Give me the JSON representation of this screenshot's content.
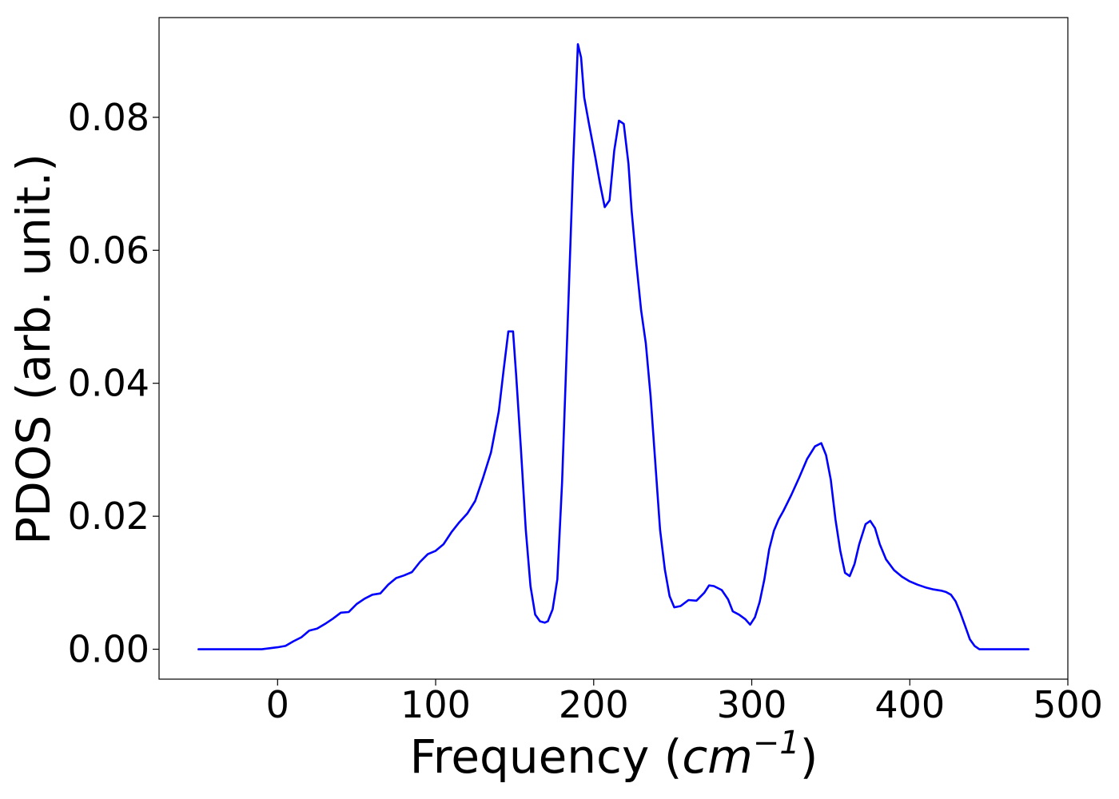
{
  "chart_data": {
    "type": "line",
    "title": "",
    "xlabel": "Frequency",
    "xlabel_unit_base": "cm",
    "xlabel_unit_exp": "−1",
    "ylabel": "PDOS (arb. unit.)",
    "xlim": [
      -75,
      500
    ],
    "ylim": [
      -0.0045,
      0.095
    ],
    "xticks": [
      0,
      100,
      200,
      300,
      400,
      500
    ],
    "xtick_labels": [
      "0",
      "100",
      "200",
      "300",
      "400",
      "500"
    ],
    "yticks": [
      0.0,
      0.02,
      0.04,
      0.06,
      0.08
    ],
    "ytick_labels": [
      "0.00",
      "0.02",
      "0.04",
      "0.06",
      "0.08"
    ],
    "grid": false,
    "line_color": "#0000ff",
    "series": [
      {
        "x": [
          -50,
          -10,
          0,
          5,
          10,
          15,
          20,
          25,
          30,
          35,
          40,
          45,
          50,
          55,
          60,
          65,
          70,
          75,
          80,
          85,
          90,
          95,
          100,
          105,
          110,
          115,
          120,
          125,
          130,
          135,
          140,
          143,
          146,
          149,
          151,
          154,
          157,
          160,
          163,
          166,
          169,
          171,
          174,
          177,
          180,
          184,
          187,
          190,
          192,
          194,
          197,
          201,
          204,
          207,
          210,
          213,
          216,
          219,
          222,
          224,
          227,
          230,
          233,
          236,
          239,
          242,
          245,
          248,
          251,
          255,
          260,
          265,
          270,
          273,
          276,
          281,
          285,
          288,
          292,
          296,
          299,
          302,
          305,
          308,
          311,
          314,
          317,
          320,
          325,
          330,
          335,
          340,
          344,
          347,
          350,
          353,
          356,
          359,
          362,
          365,
          368,
          372,
          375,
          378,
          381,
          385,
          390,
          395,
          400,
          405,
          410,
          415,
          420,
          423,
          426,
          429,
          432,
          435,
          438,
          441,
          444,
          450,
          460,
          475
        ],
        "y": [
          0.0,
          0.0,
          0.0003,
          0.0005,
          0.0012,
          0.0018,
          0.0028,
          0.0031,
          0.0038,
          0.0046,
          0.0055,
          0.0056,
          0.0068,
          0.0076,
          0.0082,
          0.0084,
          0.0097,
          0.0107,
          0.0111,
          0.0116,
          0.0131,
          0.0143,
          0.0148,
          0.0158,
          0.0176,
          0.0191,
          0.0204,
          0.0223,
          0.0258,
          0.0296,
          0.0358,
          0.042,
          0.0478,
          0.0478,
          0.041,
          0.03,
          0.018,
          0.0095,
          0.0052,
          0.0042,
          0.004,
          0.0042,
          0.006,
          0.0105,
          0.025,
          0.052,
          0.073,
          0.091,
          0.089,
          0.083,
          0.079,
          0.074,
          0.07,
          0.0665,
          0.0675,
          0.075,
          0.0795,
          0.079,
          0.073,
          0.066,
          0.058,
          0.051,
          0.046,
          0.038,
          0.028,
          0.018,
          0.012,
          0.008,
          0.0063,
          0.0065,
          0.0074,
          0.0073,
          0.0085,
          0.0096,
          0.0095,
          0.0089,
          0.0075,
          0.0057,
          0.0052,
          0.0045,
          0.0037,
          0.0048,
          0.0071,
          0.0105,
          0.015,
          0.0178,
          0.0195,
          0.0208,
          0.0232,
          0.0258,
          0.0286,
          0.0305,
          0.031,
          0.0292,
          0.0255,
          0.0195,
          0.0148,
          0.0115,
          0.011,
          0.0128,
          0.0158,
          0.0188,
          0.0193,
          0.0182,
          0.0158,
          0.0135,
          0.0119,
          0.0109,
          0.0102,
          0.0097,
          0.0093,
          0.009,
          0.0088,
          0.0086,
          0.0082,
          0.0072,
          0.0055,
          0.0035,
          0.0015,
          0.0005,
          0.0,
          0.0,
          0.0,
          0.0
        ]
      }
    ]
  }
}
